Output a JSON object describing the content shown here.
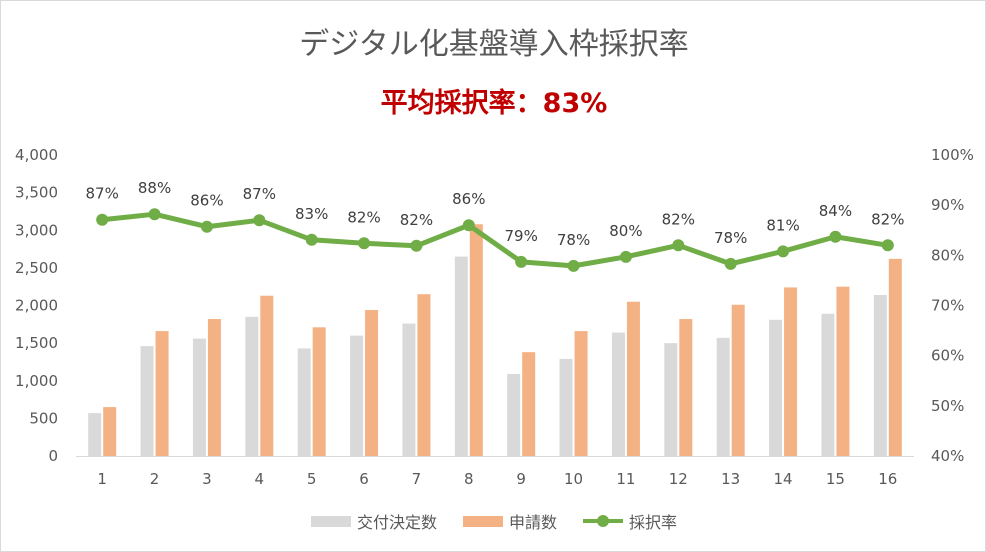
{
  "chart_data": {
    "type": "bar",
    "title": "デジタル化基盤導入枠採択率",
    "subtitle": "平均採択率：83%",
    "categories": [
      "1",
      "2",
      "3",
      "4",
      "5",
      "6",
      "7",
      "8",
      "9",
      "10",
      "11",
      "12",
      "13",
      "14",
      "15",
      "16"
    ],
    "series": [
      {
        "name": "交付決定数",
        "type": "bar",
        "axis": "left",
        "color": "#d9d9d9",
        "values": [
          570,
          1460,
          1560,
          1850,
          1430,
          1600,
          1760,
          2650,
          1090,
          1290,
          1640,
          1500,
          1570,
          1810,
          1890,
          2140
        ]
      },
      {
        "name": "申請数",
        "type": "bar",
        "axis": "left",
        "color": "#f4b183",
        "values": [
          650,
          1660,
          1820,
          2130,
          1710,
          1940,
          2150,
          3080,
          1380,
          1660,
          2050,
          1820,
          2010,
          2240,
          2250,
          2620
        ]
      },
      {
        "name": "採択率",
        "type": "line",
        "axis": "right",
        "color": "#70ad47",
        "values": [
          87.1,
          88.2,
          85.7,
          87.0,
          83.1,
          82.4,
          81.9,
          86.0,
          78.7,
          77.9,
          79.7,
          82.0,
          78.3,
          80.8,
          83.7,
          82.0
        ],
        "labels": [
          "87%",
          "88%",
          "86%",
          "87%",
          "83%",
          "82%",
          "82%",
          "86%",
          "79%",
          "78%",
          "80%",
          "82%",
          "78%",
          "81%",
          "84%",
          "82%"
        ]
      }
    ],
    "y_left": {
      "min": 0,
      "max": 4000,
      "ticks": [
        0,
        500,
        1000,
        1500,
        2000,
        2500,
        3000,
        3500,
        4000
      ],
      "tick_labels": [
        "0",
        "500",
        "1,000",
        "1,500",
        "2,000",
        "2,500",
        "3,000",
        "3,500",
        "4,000"
      ]
    },
    "y_right": {
      "min": 40,
      "max": 100,
      "ticks": [
        40,
        50,
        60,
        70,
        80,
        90,
        100
      ],
      "tick_labels": [
        "40%",
        "50%",
        "60%",
        "70%",
        "80%",
        "90%",
        "100%"
      ]
    },
    "grid": false,
    "legend_position": "bottom"
  }
}
